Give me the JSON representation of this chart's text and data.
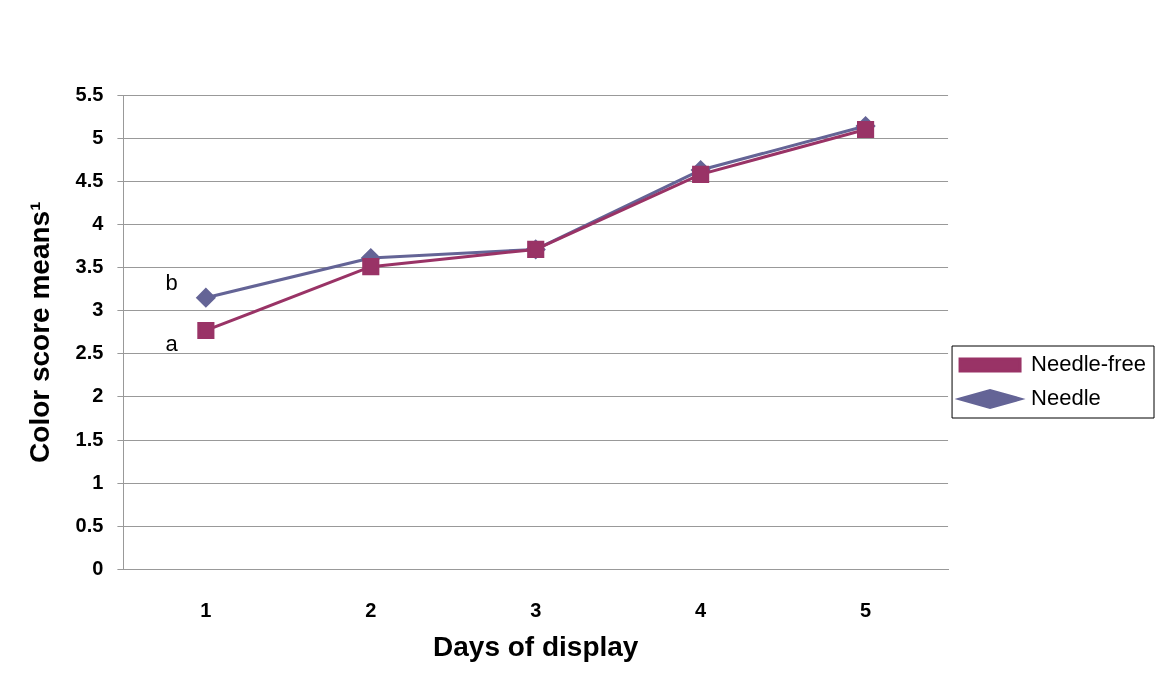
{
  "chart_data": {
    "type": "line",
    "xlabel": "Days of display",
    "ylabel": "Color score means¹",
    "categories": [
      "1",
      "2",
      "3",
      "4",
      "5"
    ],
    "series": [
      {
        "name": "Needle",
        "color": "#646496",
        "marker": "diamond",
        "values": [
          3.15,
          3.61,
          3.71,
          4.63,
          5.14
        ]
      },
      {
        "name": "Needle-free",
        "color": "#993366",
        "marker": "square",
        "values": [
          2.77,
          3.51,
          3.71,
          4.58,
          5.1
        ]
      }
    ],
    "ylim": [
      0,
      5.5
    ],
    "yticks": [
      0,
      0.5,
      1,
      1.5,
      2,
      2.5,
      3,
      3.5,
      4,
      4.5,
      5,
      5.5
    ],
    "grid": "y",
    "legend": "right",
    "line_style": "solid",
    "annotations": [
      {
        "text": "b",
        "x": "1",
        "y": 3.15
      },
      {
        "text": "a",
        "x": "1",
        "y": 2.77
      }
    ]
  }
}
